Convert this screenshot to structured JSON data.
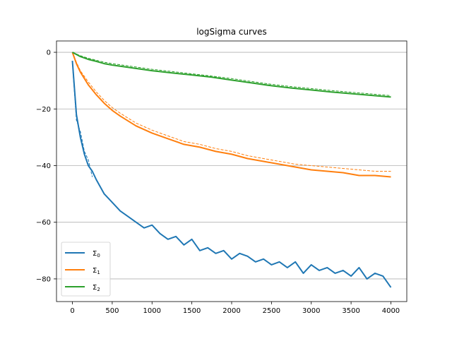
{
  "chart_data": {
    "type": "line",
    "title": "logSigma curves",
    "xlabel": "",
    "ylabel": "",
    "xlim": [
      -200,
      4200
    ],
    "ylim": [
      -88,
      4
    ],
    "xticks": [
      0,
      500,
      1000,
      1500,
      2000,
      2500,
      3000,
      3500,
      4000
    ],
    "xtick_labels": [
      "0",
      "500",
      "1000",
      "1500",
      "2000",
      "2500",
      "3000",
      "3500",
      "4000"
    ],
    "yticks": [
      0,
      -20,
      -40,
      -60,
      -80
    ],
    "ytick_labels": [
      "0",
      "−20",
      "−40",
      "−60",
      "−80"
    ],
    "grid": "horizontal",
    "legend_position": "lower-left",
    "series": [
      {
        "name": "Σ0",
        "legend_label": "Σ",
        "legend_sub": "0",
        "color": "#1f77b4",
        "style": "solid",
        "x": [
          0,
          50,
          100,
          150,
          200,
          250,
          300,
          400,
          500,
          600,
          700,
          800,
          900,
          1000,
          1100,
          1200,
          1300,
          1400,
          1500,
          1600,
          1700,
          1800,
          1900,
          2000,
          2100,
          2200,
          2300,
          2400,
          2500,
          2600,
          2700,
          2800,
          2900,
          3000,
          3100,
          3200,
          3300,
          3400,
          3500,
          3600,
          3700,
          3800,
          3900,
          4000
        ],
        "values": [
          -3,
          -22,
          -30,
          -36,
          -40,
          -42,
          -45,
          -50,
          -53,
          -56,
          -58,
          -60,
          -62,
          -61,
          -64,
          -66,
          -65,
          -68,
          -66,
          -70,
          -69,
          -71,
          -70,
          -73,
          -71,
          -72,
          -74,
          -73,
          -75,
          -74,
          -76,
          -74,
          -78,
          -75,
          -77,
          -76,
          -78,
          -77,
          -79,
          -76,
          -80,
          -78,
          -79,
          -83
        ]
      },
      {
        "name": "Σ0 (dashed)",
        "color": "#1f77b4",
        "style": "dashed",
        "x": [
          0,
          50,
          100,
          150,
          200,
          250
        ],
        "values": [
          -4,
          -24,
          -28,
          -35,
          -38,
          -44
        ]
      },
      {
        "name": "Σ1",
        "legend_label": "Σ",
        "legend_sub": "1",
        "color": "#ff7f0e",
        "style": "solid",
        "x": [
          0,
          50,
          100,
          200,
          300,
          400,
          500,
          600,
          800,
          1000,
          1200,
          1400,
          1600,
          1800,
          2000,
          2200,
          2400,
          2600,
          2800,
          3000,
          3200,
          3400,
          3600,
          3800,
          4000
        ],
        "values": [
          0,
          -4,
          -7,
          -11.5,
          -15,
          -18,
          -20.5,
          -22.5,
          -26,
          -28.5,
          -30.5,
          -32.5,
          -33.5,
          -35,
          -36,
          -37.5,
          -38.5,
          -39.5,
          -40.5,
          -41.5,
          -42,
          -42.5,
          -43.5,
          -43.5,
          -44
        ]
      },
      {
        "name": "Σ1 (dashed)",
        "color": "#ff7f0e",
        "style": "dashed",
        "x": [
          0,
          50,
          100,
          200,
          300,
          400,
          500,
          600,
          800,
          1000,
          1200,
          1400,
          1600,
          1800,
          2000,
          2200,
          2400,
          2600,
          2800,
          3000,
          3200,
          3400,
          3600,
          3800,
          4000
        ],
        "values": [
          0,
          -3.5,
          -6.5,
          -10.5,
          -14,
          -17,
          -19.5,
          -21.5,
          -25,
          -27.5,
          -29.5,
          -31.5,
          -32.5,
          -34,
          -35,
          -36.5,
          -37.5,
          -38.5,
          -39.5,
          -40,
          -40.5,
          -41,
          -41.5,
          -42,
          -42
        ]
      },
      {
        "name": "Σ2",
        "legend_label": "Σ",
        "legend_sub": "2",
        "color": "#2ca02c",
        "style": "solid",
        "x": [
          0,
          100,
          200,
          300,
          400,
          500,
          750,
          1000,
          1250,
          1500,
          1750,
          2000,
          2250,
          2500,
          2750,
          3000,
          3250,
          3500,
          3750,
          4000
        ],
        "values": [
          0,
          -1.5,
          -2.5,
          -3.2,
          -4,
          -4.5,
          -5.5,
          -6.5,
          -7.3,
          -8,
          -8.8,
          -9.8,
          -10.8,
          -11.8,
          -12.6,
          -13.3,
          -14,
          -14.6,
          -15.2,
          -15.8
        ]
      },
      {
        "name": "Σ2 (dashed)",
        "color": "#2ca02c",
        "style": "dashed",
        "x": [
          0,
          100,
          200,
          300,
          400,
          500,
          750,
          1000,
          1250,
          1500,
          1750,
          2000,
          2250,
          2500,
          2750,
          3000,
          3250,
          3500,
          3750,
          4000
        ],
        "values": [
          0,
          -1.2,
          -2.1,
          -2.8,
          -3.5,
          -4,
          -5,
          -6,
          -6.8,
          -7.6,
          -8.4,
          -9.3,
          -10.3,
          -11.3,
          -12.1,
          -12.8,
          -13.5,
          -14.1,
          -14.7,
          -15.3
        ]
      }
    ]
  }
}
